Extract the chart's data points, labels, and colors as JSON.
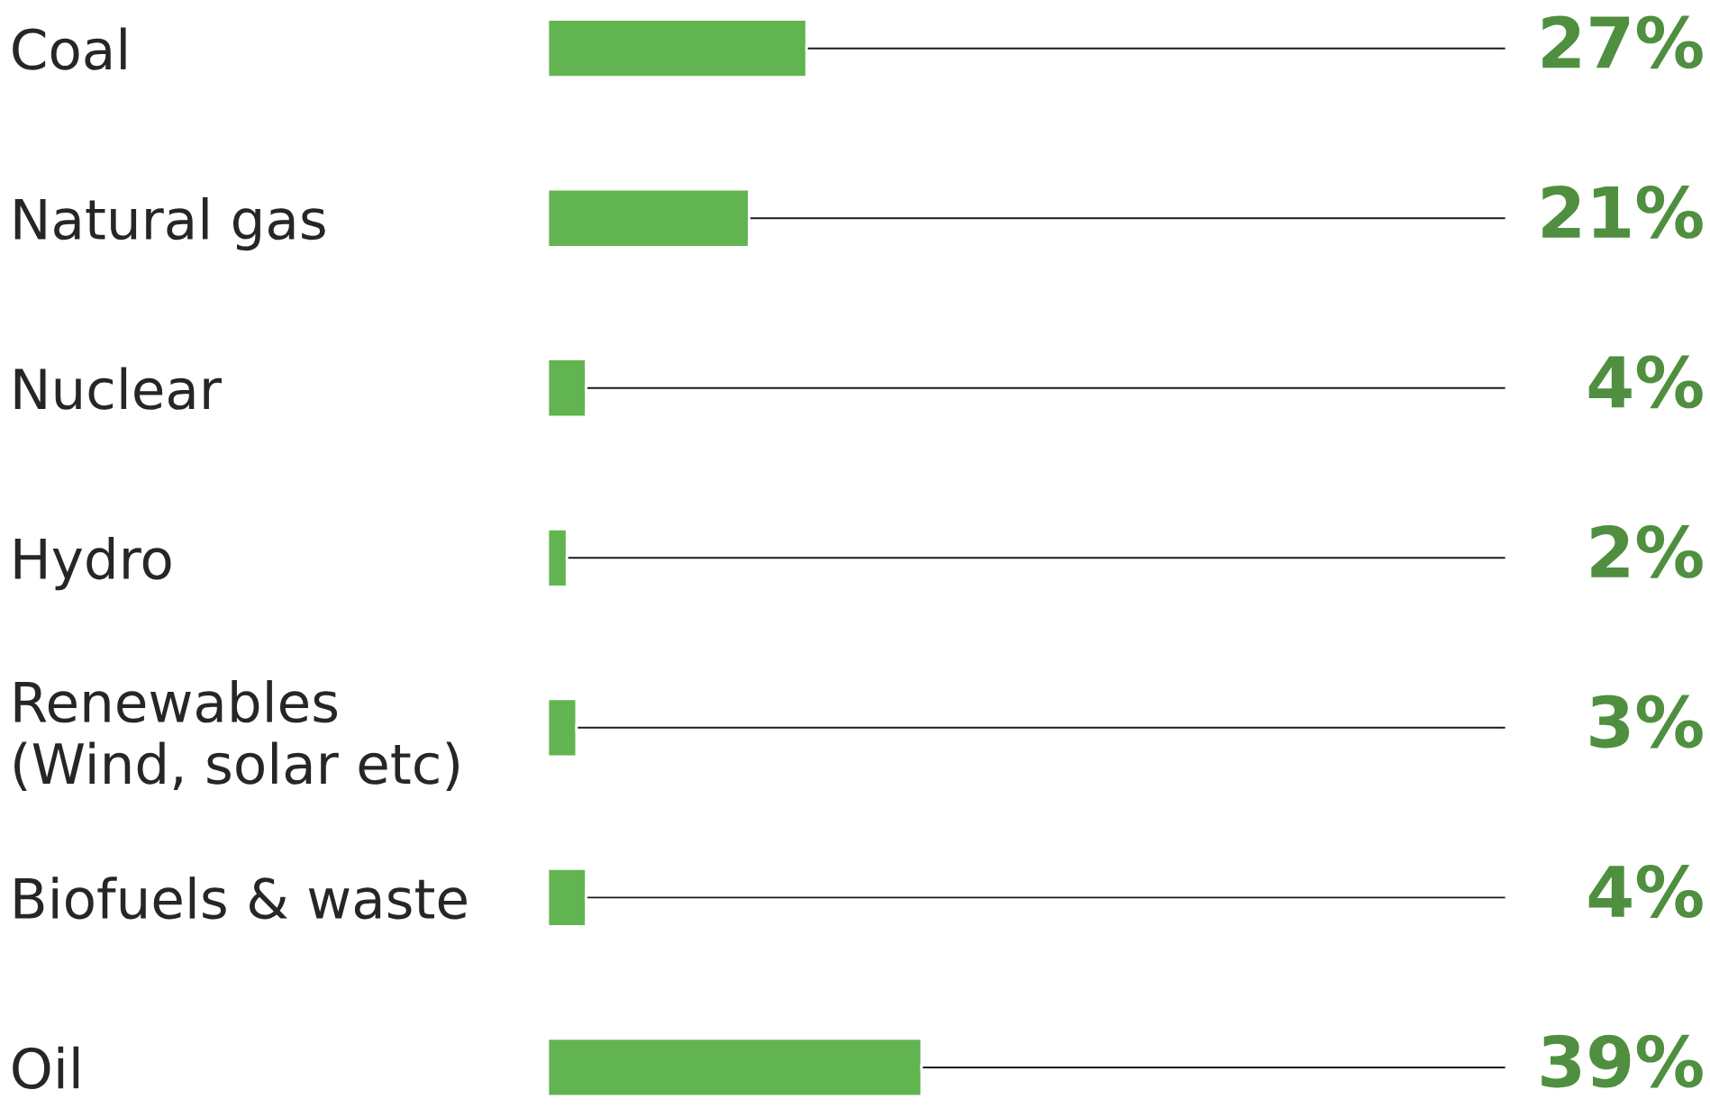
{
  "chart_data": {
    "type": "bar",
    "orientation": "horizontal",
    "stacked": true,
    "categories": [
      "Coal",
      "Natural gas",
      "Nuclear",
      "Hydro",
      "Renewables\n(Wind, solar etc)",
      "Biofuels & waste",
      "Oil"
    ],
    "series": [
      {
        "color": "#62b450",
        "values": [
          27,
          21,
          4,
          2,
          3,
          4,
          39
        ],
        "value_labels": [
          "27%",
          "21%",
          "4%",
          "2%",
          "3%",
          "4%",
          "39%"
        ]
      },
      {
        "color": "#1a1a1a",
        "values": [
          73,
          79,
          96,
          98,
          97,
          96,
          61
        ]
      }
    ],
    "xlim": [
      0,
      100
    ],
    "tick_labels": "y",
    "legend": false
  }
}
